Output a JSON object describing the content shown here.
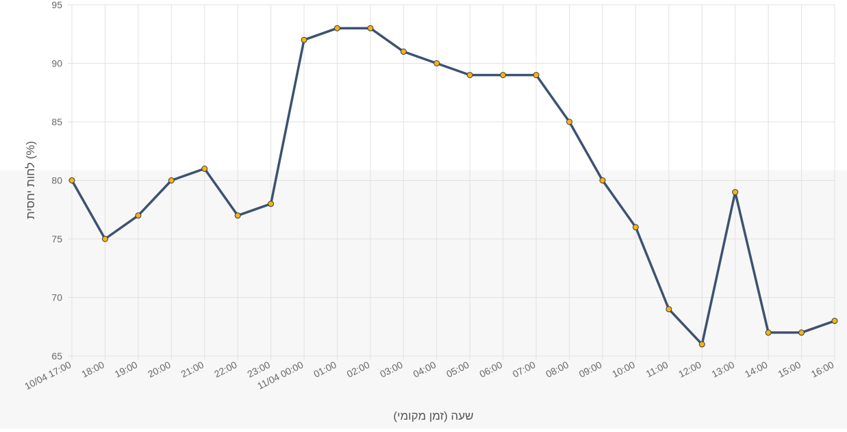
{
  "chart_data": {
    "type": "line",
    "title": "",
    "xlabel": "שעה (זמן מקומי)",
    "ylabel": "לחות יחסית (%)",
    "ylim": [
      65,
      95
    ],
    "yticks": [
      65,
      70,
      75,
      80,
      85,
      90,
      95
    ],
    "grid": true,
    "categories": [
      "10/04 17:00",
      "18:00",
      "19:00",
      "20:00",
      "21:00",
      "22:00",
      "23:00",
      "11/04 00:00",
      "01:00",
      "02:00",
      "03:00",
      "04:00",
      "05:00",
      "06:00",
      "07:00",
      "08:00",
      "09:00",
      "10:00",
      "11:00",
      "12:00",
      "13:00",
      "14:00",
      "15:00",
      "16:00"
    ],
    "series": [
      {
        "values": [
          80,
          75,
          77,
          80,
          81,
          77,
          78,
          92,
          93,
          93,
          91,
          90,
          89,
          89,
          89,
          85,
          80,
          76,
          69,
          66,
          79,
          67,
          67,
          68
        ],
        "line_color": "#3d5270",
        "marker_color": "#f2b31a"
      }
    ]
  }
}
